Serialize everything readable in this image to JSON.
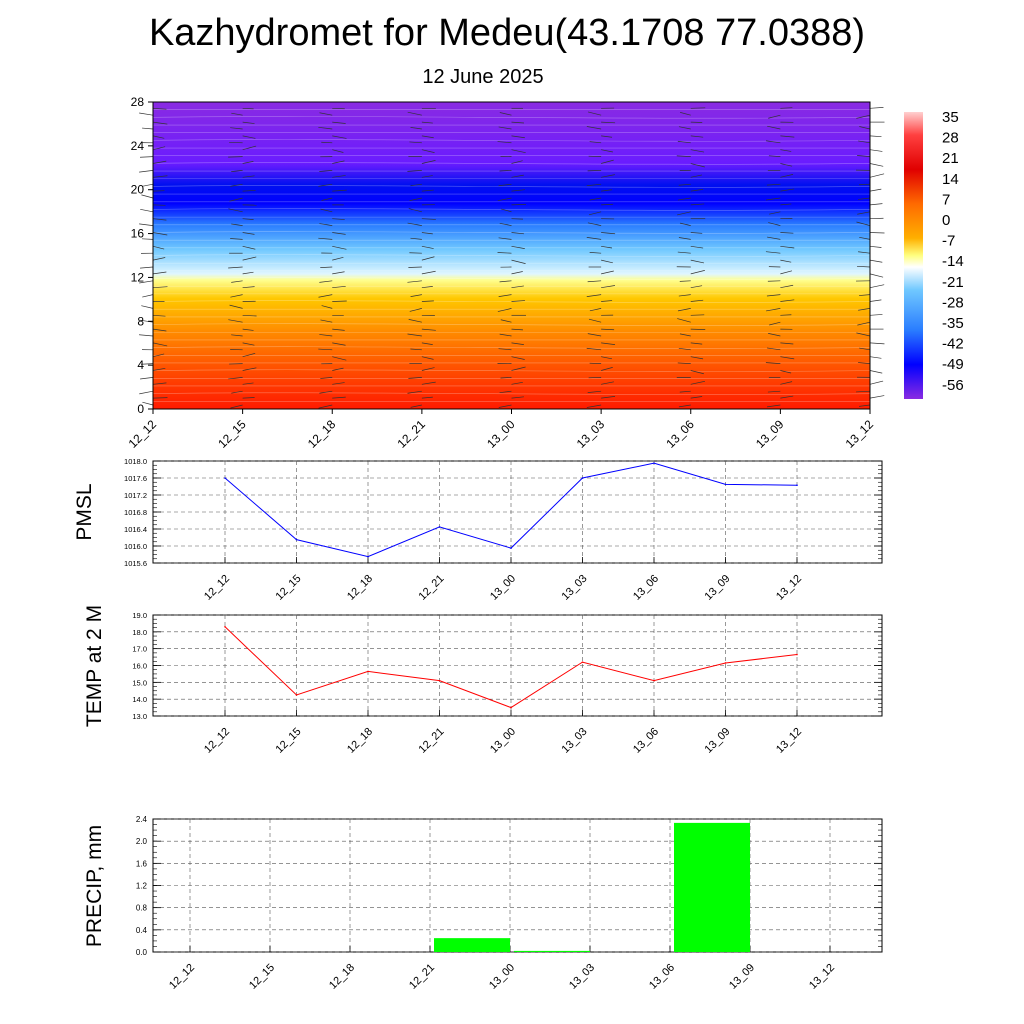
{
  "title": "Kazhydromet for Medeu(43.1708 77.0388)",
  "subtitle": "12 June 2025",
  "time_labels": [
    "12_12",
    "12_15",
    "12_18",
    "12_21",
    "13_00",
    "13_03",
    "13_06",
    "13_09",
    "13_12"
  ],
  "chart_data": [
    {
      "type": "heatmap",
      "name": "cross-section",
      "y_ticks": [
        0,
        4,
        8,
        12,
        16,
        20,
        24,
        28
      ],
      "ylim": [
        0,
        28
      ],
      "x": [
        "12_12",
        "12_15",
        "12_18",
        "12_21",
        "13_00",
        "13_03",
        "13_06",
        "13_09",
        "13_12"
      ],
      "colorbar_labels": [
        "35",
        "28",
        "21",
        "14",
        "7",
        "0",
        "-7",
        "-14",
        "-21",
        "-28",
        "-35",
        "-42",
        "-49",
        "-56"
      ],
      "colorscale": [
        "#ff0000",
        "#ff4500",
        "#ff8c00",
        "#ffc000",
        "#ffff80",
        "#e0f8ff",
        "#80d0ff",
        "#2080ff",
        "#0000ff",
        "#6010ff",
        "#8a2be2"
      ],
      "overlay": "wind barbs"
    },
    {
      "type": "line",
      "ylabel": "PMSL",
      "ylim": [
        1015.6,
        1018.0
      ],
      "y_ticks": [
        "1018.0",
        "1017.6",
        "1017.2",
        "1016.8",
        "1016.4",
        "1016.0",
        "1015.6"
      ],
      "categories": [
        "12_12",
        "12_15",
        "12_18",
        "12_21",
        "13_00",
        "13_03",
        "13_06",
        "13_09",
        "13_12"
      ],
      "values": [
        1017.6,
        1016.15,
        1015.75,
        1016.45,
        1015.95,
        1017.6,
        1017.95,
        1017.45,
        1017.43
      ],
      "color": "#0000ff"
    },
    {
      "type": "line",
      "ylabel": "TEMP at 2 M",
      "ylim": [
        13.0,
        19.0
      ],
      "y_ticks": [
        "19.0",
        "18.0",
        "17.0",
        "16.0",
        "15.0",
        "14.0",
        "13.0"
      ],
      "categories": [
        "12_12",
        "12_15",
        "12_18",
        "12_21",
        "13_00",
        "13_03",
        "13_06",
        "13_09",
        "13_12"
      ],
      "values": [
        18.3,
        14.25,
        15.65,
        15.1,
        13.5,
        16.2,
        15.1,
        16.15,
        16.65
      ],
      "color": "#ff0000"
    },
    {
      "type": "bar",
      "ylabel": "PRECIP, mm",
      "ylim": [
        0,
        2.4
      ],
      "y_ticks": [
        "2.4",
        "2.0",
        "1.6",
        "1.2",
        "0.8",
        "0.4",
        "0.0"
      ],
      "categories": [
        "12_12",
        "12_15",
        "12_18",
        "12_21",
        "13_00",
        "13_03",
        "13_06",
        "13_09",
        "13_12"
      ],
      "values": [
        0,
        0,
        0,
        0.25,
        0.02,
        0,
        2.33,
        0,
        0
      ],
      "color": "#00ff00"
    }
  ]
}
